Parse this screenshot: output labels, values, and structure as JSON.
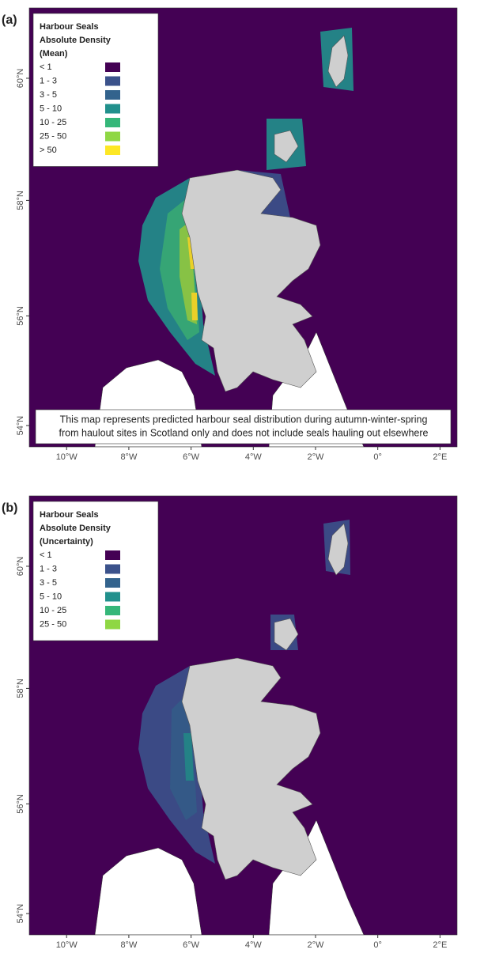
{
  "panels": [
    {
      "label": "(a)",
      "legend": {
        "title": [
          "Harbour Seals",
          "Absolute Density",
          "(Mean)"
        ],
        "items": [
          {
            "label": "< 1",
            "color": "#440154"
          },
          {
            "label": "1 - 3",
            "color": "#3b528b"
          },
          {
            "label": "3 - 5",
            "color": "#33638d"
          },
          {
            "label": "5 - 10",
            "color": "#21908c"
          },
          {
            "label": "10 - 25",
            "color": "#35b779"
          },
          {
            "label": "25 - 50",
            "color": "#8fd744"
          },
          {
            "label": "> 50",
            "color": "#fde725"
          }
        ]
      },
      "note": [
        "This map represents predicted harbour seal distribution during autumn-winter-spring",
        "from haulout sites in Scotland only and does not include seals hauling out elsewhere"
      ],
      "xlim": [
        -11.2,
        2.55
      ],
      "ylim": [
        53.6,
        61.1
      ],
      "xticks": [
        {
          "value": -10,
          "label": "10°W"
        },
        {
          "value": -8,
          "label": "8°W"
        },
        {
          "value": -6,
          "label": "6°W"
        },
        {
          "value": -4,
          "label": "4°W"
        },
        {
          "value": -2,
          "label": "2°W"
        },
        {
          "value": 0,
          "label": "0°"
        },
        {
          "value": 2,
          "label": "2°E"
        }
      ],
      "yticks": [
        {
          "value": 54,
          "label": "54°N"
        },
        {
          "value": 56,
          "label": "56°N"
        },
        {
          "value": 58,
          "label": "58°N"
        },
        {
          "value": 60,
          "label": "60°N"
        }
      ]
    },
    {
      "label": "(b)",
      "legend": {
        "title": [
          "Harbour Seals",
          "Absolute Density",
          "(Uncertainty)"
        ],
        "items": [
          {
            "label": "< 1",
            "color": "#440154"
          },
          {
            "label": "1 - 3",
            "color": "#3b528b"
          },
          {
            "label": "3 - 5",
            "color": "#33638d"
          },
          {
            "label": "5 - 10",
            "color": "#21908c"
          },
          {
            "label": "10 - 25",
            "color": "#35b779"
          },
          {
            "label": "25 - 50",
            "color": "#8fd744"
          }
        ]
      },
      "xlim": [
        -11.2,
        2.55
      ],
      "ylim": [
        53.6,
        61.1
      ],
      "xticks": [
        {
          "value": -10,
          "label": "10°W"
        },
        {
          "value": -8,
          "label": "8°W"
        },
        {
          "value": -6,
          "label": "6°W"
        },
        {
          "value": -4,
          "label": "4°W"
        },
        {
          "value": -2,
          "label": "2°W"
        },
        {
          "value": 0,
          "label": "0°"
        },
        {
          "value": 2,
          "label": "2°E"
        }
      ],
      "yticks": [
        {
          "value": 54,
          "label": "54°N"
        },
        {
          "value": 56,
          "label": "56°N"
        },
        {
          "value": 58,
          "label": "58°N"
        },
        {
          "value": 60,
          "label": "60°N"
        }
      ]
    }
  ]
}
